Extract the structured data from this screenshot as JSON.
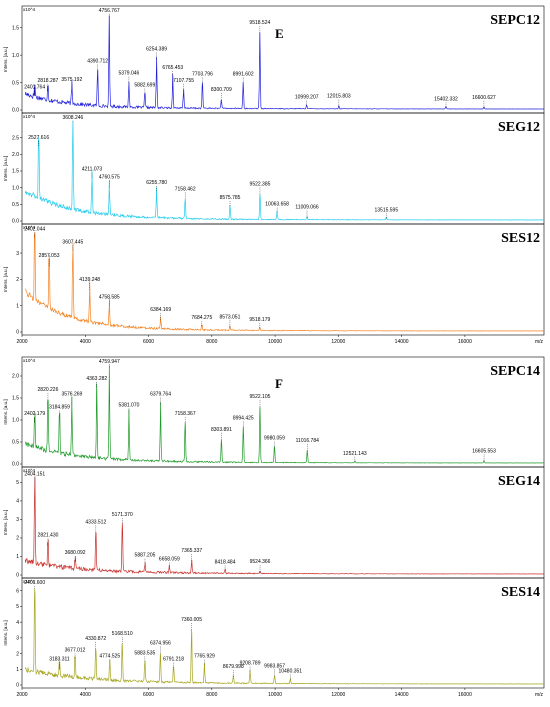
{
  "colors": {
    "SEPC12": "#2222dd",
    "SEG12": "#22ccee",
    "SES12": "#f58220",
    "SEPC14": "#1f9a2a",
    "SEG14": "#c9302c",
    "SES14": "#a5a51f"
  },
  "figures": [
    {
      "letter": "E",
      "x_axis": {
        "ticks": [
          "2000",
          "4000",
          "6000",
          "8000",
          "10000",
          "12000",
          "14000",
          "16000"
        ],
        "unit": "m/z"
      }
    },
    {
      "letter": "F",
      "x_axis": {
        "ticks": [
          "2000",
          "4000",
          "6000",
          "8000",
          "10000",
          "12000",
          "14000",
          "16000"
        ],
        "unit": "m/z"
      }
    }
  ],
  "chart_data": [
    {
      "type": "line",
      "title": "SEPC12",
      "figure": "E",
      "xlabel": "m/z",
      "ylabel": "Intens. [a.u.]",
      "y_exponent": "x10^4",
      "xlim": [
        2000,
        18500
      ],
      "ylim": [
        0,
        1.75
      ],
      "yticks": [
        "0.0",
        "0.5",
        "1.0",
        "1.5"
      ],
      "baseline": {
        "start": 0.25,
        "decay": 1200
      },
      "peaks": [
        {
          "x": 2401.764,
          "y": 0.26,
          "label": "2401.764"
        },
        {
          "x": 2818.287,
          "y": 0.35,
          "label": "2818.287"
        },
        {
          "x": 3575.192,
          "y": 0.4,
          "label": "3575.192"
        },
        {
          "x": 4390.712,
          "y": 0.7,
          "label": "4390.712"
        },
        {
          "x": 4756.767,
          "y": 1.7,
          "label": "4756.767"
        },
        {
          "x": 5379.046,
          "y": 0.48,
          "label": "5379.046"
        },
        {
          "x": 5882.699,
          "y": 0.3,
          "label": "5882.699"
        },
        {
          "x": 6254.389,
          "y": 0.92,
          "label": "6254.389"
        },
        {
          "x": 6765.453,
          "y": 0.62,
          "label": "6765.453"
        },
        {
          "x": 7107.755,
          "y": 0.35,
          "label": "7107.755"
        },
        {
          "x": 7703.796,
          "y": 0.5,
          "label": "7703.796"
        },
        {
          "x": 8300.709,
          "y": 0.18,
          "label": "8300.709"
        },
        {
          "x": 8991.602,
          "y": 0.5,
          "label": "8991.602"
        },
        {
          "x": 9518.524,
          "y": 1.4,
          "label": "9518.524"
        },
        {
          "x": 10999.207,
          "y": 0.08,
          "label": "10999.207"
        },
        {
          "x": 12015.803,
          "y": 0.06,
          "label": "12015.803"
        },
        {
          "x": 15402.332,
          "y": 0.05,
          "label": "15402.332"
        },
        {
          "x": 16600.627,
          "y": 0.04,
          "label": "16600.627"
        }
      ]
    },
    {
      "type": "line",
      "title": "SEG12",
      "figure": "E",
      "xlabel": "m/z",
      "ylabel": "Intens. [a.u.]",
      "y_exponent": "x10^4",
      "xlim": [
        2000,
        18500
      ],
      "ylim": [
        0,
        3.0
      ],
      "yticks": [
        "0.0",
        "0.5",
        "1.0",
        "1.5",
        "2.0",
        "2.5"
      ],
      "baseline": {
        "start": 0.85,
        "decay": 1400
      },
      "peaks": [
        {
          "x": 2527.616,
          "y": 2.25,
          "label": "2527.616"
        },
        {
          "x": 3608.246,
          "y": 2.98,
          "label": "3608.246"
        },
        {
          "x": 4211.073,
          "y": 1.3,
          "label": "4211.073"
        },
        {
          "x": 4760.575,
          "y": 1.0,
          "label": "4760.575"
        },
        {
          "x": 6255.78,
          "y": 0.9,
          "label": "6255.780"
        },
        {
          "x": 7158.462,
          "y": 0.65,
          "label": "7158.462"
        },
        {
          "x": 8575.785,
          "y": 0.45,
          "label": "8575.785"
        },
        {
          "x": 9522.385,
          "y": 0.8,
          "label": "9522.385"
        },
        {
          "x": 10063.658,
          "y": 0.25,
          "label": "10063.658"
        },
        {
          "x": 11009.066,
          "y": 0.1,
          "label": "11009.066"
        },
        {
          "x": 13515.595,
          "y": 0.08,
          "label": "13515.595"
        }
      ]
    },
    {
      "type": "line",
      "title": "SES12",
      "figure": "E",
      "xlabel": "m/z",
      "ylabel": "Intens. [a.u.]",
      "y_exponent": "x10^4",
      "xlim": [
        2000,
        18500
      ],
      "ylim": [
        0,
        3.8
      ],
      "yticks": [
        "0",
        "1",
        "2",
        "3"
      ],
      "baseline": {
        "start": 1.5,
        "decay": 1300
      },
      "peaks": [
        {
          "x": 2402.044,
          "y": 3.6,
          "label": "2402.044"
        },
        {
          "x": 2857.053,
          "y": 2.5,
          "label": "2857.053"
        },
        {
          "x": 3607.445,
          "y": 3.1,
          "label": "3607.445"
        },
        {
          "x": 4139.248,
          "y": 1.6,
          "label": "4139.248"
        },
        {
          "x": 4758.585,
          "y": 1.0,
          "label": "4758.585"
        },
        {
          "x": 6384.169,
          "y": 0.45,
          "label": "6384.169"
        },
        {
          "x": 7684.275,
          "y": 0.22,
          "label": "7684.275"
        },
        {
          "x": 8573.051,
          "y": 0.18,
          "label": "8573.051"
        },
        {
          "x": 9518.179,
          "y": 0.15,
          "label": "9518.179"
        }
      ]
    },
    {
      "type": "line",
      "title": "SEPC14",
      "figure": "F",
      "xlabel": "m/z",
      "ylabel": "Intens. [a.u.]",
      "y_exponent": "x10^4",
      "xlim": [
        2000,
        18500
      ],
      "ylim": [
        0,
        2.25
      ],
      "yticks": [
        "0.0",
        "0.5",
        "1.0",
        "1.5",
        "2.0"
      ],
      "baseline": {
        "start": 0.4,
        "decay": 1500
      },
      "peaks": [
        {
          "x": 2402.179,
          "y": 0.95,
          "label": "2402.179"
        },
        {
          "x": 2820.226,
          "y": 1.45,
          "label": "2820.226"
        },
        {
          "x": 3184.859,
          "y": 1.1,
          "label": "3184.859"
        },
        {
          "x": 3576.269,
          "y": 1.35,
          "label": "3576.269"
        },
        {
          "x": 4363.282,
          "y": 1.75,
          "label": "4363.282"
        },
        {
          "x": 4759.947,
          "y": 2.2,
          "label": "4759.947"
        },
        {
          "x": 5381.07,
          "y": 1.15,
          "label": "5381.070"
        },
        {
          "x": 6379.764,
          "y": 1.35,
          "label": "6379.764"
        },
        {
          "x": 7158.367,
          "y": 0.95,
          "label": "7158.367"
        },
        {
          "x": 8303.891,
          "y": 0.55,
          "label": "8303.891"
        },
        {
          "x": 8994.425,
          "y": 0.85,
          "label": "8994.425"
        },
        {
          "x": 9522.105,
          "y": 1.3,
          "label": "9522.105"
        },
        {
          "x": 9980.059,
          "y": 0.4,
          "label": "9980.059"
        },
        {
          "x": 11016.784,
          "y": 0.3,
          "label": "11016.784"
        },
        {
          "x": 12521.143,
          "y": 0.05,
          "label": "12521.143"
        },
        {
          "x": 16605.553,
          "y": 0.06,
          "label": "16605.553"
        }
      ]
    },
    {
      "type": "line",
      "title": "SEG14",
      "figure": "F",
      "xlabel": "m/z",
      "ylabel": "Intens. [a.u.]",
      "y_exponent": "x10^4",
      "xlim": [
        2000,
        18500
      ],
      "ylim": [
        0,
        5.4
      ],
      "yticks": [
        "0",
        "1",
        "2",
        "3",
        "4",
        "5"
      ],
      "baseline": {
        "start": 0.6,
        "decay": 1500
      },
      "peaks": [
        {
          "x": 2404.151,
          "y": 5.0,
          "label": "2404.151"
        },
        {
          "x": 2821.43,
          "y": 1.6,
          "label": "2821.430"
        },
        {
          "x": 3680.092,
          "y": 0.75,
          "label": "3680.092"
        },
        {
          "x": 4333.512,
          "y": 2.3,
          "label": "4333.512"
        },
        {
          "x": 5171.37,
          "y": 2.8,
          "label": "5171.370"
        },
        {
          "x": 5887.205,
          "y": 0.5,
          "label": "5887.205"
        },
        {
          "x": 6658.059,
          "y": 0.4,
          "label": "6658.059"
        },
        {
          "x": 7365.337,
          "y": 0.75,
          "label": "7365.337"
        },
        {
          "x": 8418.484,
          "y": 0.25,
          "label": "8418.484"
        },
        {
          "x": 9524.366,
          "y": 0.15,
          "label": "9524.366"
        }
      ]
    },
    {
      "type": "line",
      "title": "SES14",
      "figure": "F",
      "xlabel": "m/z",
      "ylabel": "Intens. [a.u.]",
      "y_exponent": "x10^4",
      "xlim": [
        2000,
        18500
      ],
      "ylim": [
        0,
        6.3
      ],
      "yticks": [
        "0",
        "1",
        "2",
        "3",
        "4",
        "5",
        "6"
      ],
      "baseline": {
        "start": 0.8,
        "decay": 1800
      },
      "peaks": [
        {
          "x": 2401.6,
          "y": 6.1,
          "label": "2401.600"
        },
        {
          "x": 3183.311,
          "y": 1.0,
          "label": "3183.311"
        },
        {
          "x": 3677.012,
          "y": 1.7,
          "label": "3677.012"
        },
        {
          "x": 4330.872,
          "y": 2.3,
          "label": "4330.872"
        },
        {
          "x": 4774.525,
          "y": 1.3,
          "label": "4774.525"
        },
        {
          "x": 5168.51,
          "y": 2.6,
          "label": "5168.510"
        },
        {
          "x": 5883.535,
          "y": 1.5,
          "label": "5883.535"
        },
        {
          "x": 6374.956,
          "y": 2.0,
          "label": "6374.956"
        },
        {
          "x": 6791.218,
          "y": 1.1,
          "label": "6791.218"
        },
        {
          "x": 7360.005,
          "y": 3.5,
          "label": "7360.005"
        },
        {
          "x": 7765.929,
          "y": 1.3,
          "label": "7765.929"
        },
        {
          "x": 8679.998,
          "y": 0.5,
          "label": "8679.998"
        },
        {
          "x": 9208.789,
          "y": 0.85,
          "label": "9208.789"
        },
        {
          "x": 9983.857,
          "y": 0.55,
          "label": "9983.857"
        },
        {
          "x": 10480.351,
          "y": 0.35,
          "label": "10480.351"
        }
      ]
    }
  ]
}
